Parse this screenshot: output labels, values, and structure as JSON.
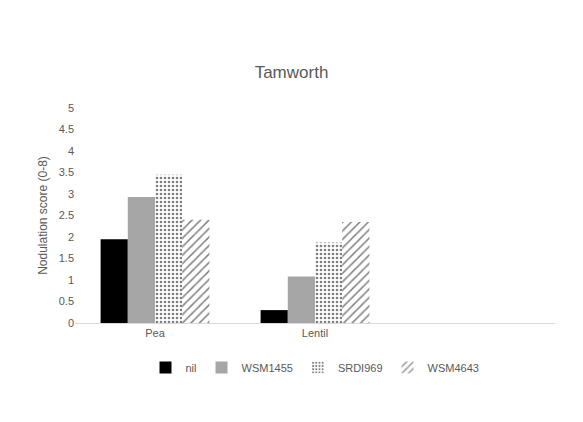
{
  "chart_data": {
    "type": "bar",
    "title": "Tamworth",
    "y_label": "Nodulation score (0-8)",
    "categories": [
      "Pea",
      "Lentil",
      null
    ],
    "series": [
      {
        "name": "nil",
        "color": "#000000",
        "marker": "solid",
        "values": [
          1.95,
          0.3,
          null
        ]
      },
      {
        "name": "WSM1455",
        "color": "#a6a6a6",
        "marker": "solid",
        "values": [
          2.93,
          1.08,
          null
        ]
      },
      {
        "name": "SRDI969",
        "color": "#7f7f7f",
        "marker": "dots",
        "values": [
          3.45,
          1.87,
          null
        ]
      },
      {
        "name": "WSM4643",
        "color": "#7f7f7f",
        "marker": "diagonal",
        "values": [
          2.4,
          2.35,
          null
        ]
      }
    ],
    "ylim": [
      0,
      5
    ],
    "yticks": [
      0,
      0.5,
      1,
      1.5,
      2,
      2.5,
      3,
      3.5,
      4,
      4.5,
      5
    ],
    "grid": false,
    "legend": "bottom"
  }
}
